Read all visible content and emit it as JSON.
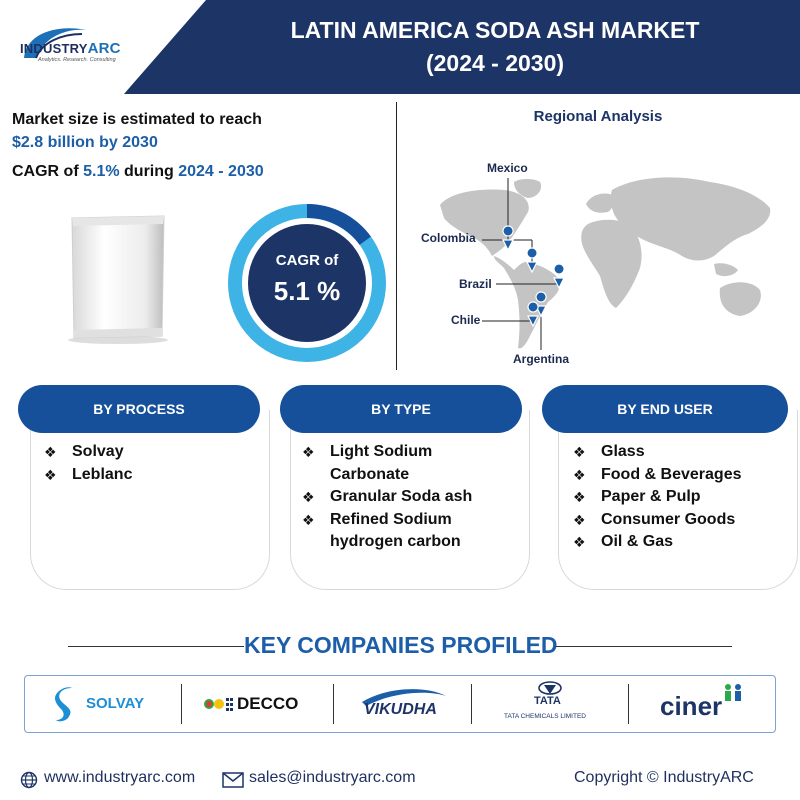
{
  "header": {
    "logo_name": "INDUSTRYARC",
    "logo_prefix": "INDUSTRY",
    "logo_suffix": "ARC",
    "logo_tagline": "Analytics. Research. Consulting",
    "title_line1": "LATIN AMERICA SODA ASH MARKET",
    "title_line2": "(2024 - 2030)"
  },
  "market": {
    "line1": "Market size is estimated to reach",
    "line2": "$2.8 billion by 2030",
    "cagr_prefix": "CAGR of ",
    "cagr_value": "5.1%",
    "cagr_mid": " during ",
    "cagr_period": "2024 - 2030"
  },
  "donut": {
    "label": "CAGR of",
    "value": "5.1 %",
    "highlight_fraction": 0.15
  },
  "regional": {
    "title": "Regional Analysis",
    "countries": [
      "Mexico",
      "Colombia",
      "Brazil",
      "Chile",
      "Argentina"
    ]
  },
  "categories": [
    {
      "title": "BY PROCESS",
      "items": [
        "Solvay",
        "Leblanc"
      ]
    },
    {
      "title": "BY TYPE",
      "items": [
        "Light Sodium Carbonate",
        "Granular Soda ash",
        "Refined Sodium hydrogen carbon"
      ]
    },
    {
      "title": "BY END USER",
      "items": [
        "Glass",
        "Food & Beverages",
        "Paper & Pulp",
        "Consumer Goods",
        "Oil & Gas"
      ]
    }
  ],
  "companies": {
    "title": "KEY COMPANIES PROFILED",
    "names": [
      "SOLVAY",
      "DECCO",
      "VIKUDHA",
      "TATA",
      "TATA CHEMICALS LIMITED",
      "ciner"
    ]
  },
  "footer": {
    "website": "www.industryarc.com",
    "email": "sales@industryarc.com",
    "copyright": "Copyright © IndustryARC"
  },
  "colors": {
    "navy": "#1d3466",
    "brand_blue": "#17509a",
    "light_blue": "#3db3e6",
    "map_gray": "#c4c4c4"
  }
}
